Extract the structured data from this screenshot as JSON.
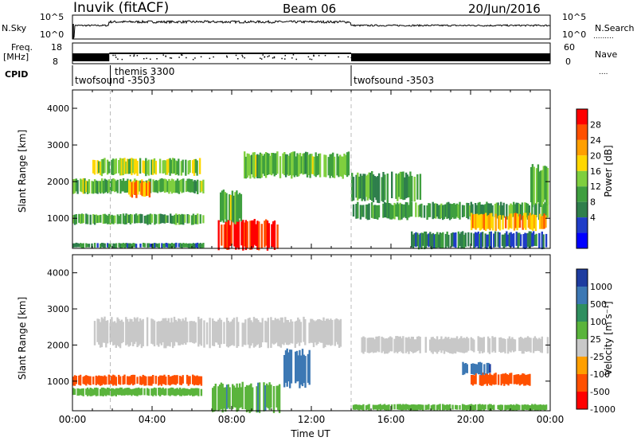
{
  "header": {
    "station": "Inuvik (fitACF)",
    "beam": "Beam 06",
    "date": "20/Jun/2016"
  },
  "summary": {
    "nsky_label": "N.Sky",
    "nsky_ticks": [
      "10^5",
      "10^0"
    ],
    "nsearch_label": "N.Search",
    "nsearch_ticks": [
      "10^5",
      "10^0"
    ],
    "freq_label_1": "Freq.",
    "freq_label_2": "[MHz]",
    "freq_ticks": [
      "18",
      "8"
    ],
    "nave_label": "Nave",
    "nave_ticks": [
      "60",
      "0"
    ],
    "cpid_label": "CPID",
    "cpid_segments": [
      {
        "name": "twofsound -3503",
        "start_h": 0.0,
        "end_h": 1.85
      },
      {
        "name": "themis 3300",
        "start_h": 1.85,
        "end_h": 1.95
      },
      {
        "name": "twofsound -3503",
        "start_h": 14.0,
        "end_h": 24.0
      }
    ]
  },
  "chart_data": [
    {
      "type": "heatmap",
      "name": "power",
      "xlabel": "",
      "ylabel": "Slant Range [km]",
      "xlim": [
        0,
        24
      ],
      "ylim": [
        180,
        4500
      ],
      "yticks": [
        1000,
        2000,
        3000,
        4000
      ],
      "colorbar": {
        "label": "Power [dB]",
        "ticks": [
          "28",
          "24",
          "20",
          "16",
          "12",
          "8",
          "4"
        ],
        "range": [
          0,
          32
        ],
        "colors": [
          "#0000ff",
          "#1f3cc8",
          "#2f7f4c",
          "#3f9f3f",
          "#7fcf3f",
          "#ffd700",
          "#ff9f00",
          "#ff5000",
          "#ff0000"
        ]
      },
      "regions": [
        {
          "t0": 0.0,
          "t1": 6.6,
          "r0": 200,
          "r1": 320,
          "value": 10
        },
        {
          "t0": 0.0,
          "t1": 6.6,
          "r0": 850,
          "r1": 1100,
          "value": 12
        },
        {
          "t0": 0.0,
          "t1": 6.6,
          "r0": 1700,
          "r1": 2050,
          "value": 14
        },
        {
          "t0": 2.8,
          "t1": 3.9,
          "r0": 1600,
          "r1": 2000,
          "value": 24
        },
        {
          "t0": 1.0,
          "t1": 6.5,
          "r0": 2200,
          "r1": 2600,
          "value": 16
        },
        {
          "t0": 7.3,
          "t1": 10.4,
          "r0": 200,
          "r1": 900,
          "value": 30
        },
        {
          "t0": 7.4,
          "t1": 8.5,
          "r0": 900,
          "r1": 1700,
          "value": 14
        },
        {
          "t0": 8.6,
          "t1": 13.9,
          "r0": 2150,
          "r1": 2750,
          "value": 14
        },
        {
          "t0": 14.0,
          "t1": 23.9,
          "r0": 1000,
          "r1": 1400,
          "value": 12
        },
        {
          "t0": 14.0,
          "t1": 17.5,
          "r0": 1500,
          "r1": 2200,
          "value": 12
        },
        {
          "t0": 20.0,
          "t1": 23.8,
          "r0": 700,
          "r1": 1100,
          "value": 22
        },
        {
          "t0": 17.0,
          "t1": 23.9,
          "r0": 200,
          "r1": 600,
          "value": 8
        },
        {
          "t0": 23.0,
          "t1": 23.9,
          "r0": 1400,
          "r1": 2400,
          "value": 14
        }
      ]
    },
    {
      "type": "heatmap",
      "name": "velocity",
      "xlabel": "Time UT",
      "ylabel": "Slant Range [km]",
      "xlim": [
        0,
        24
      ],
      "ylim": [
        180,
        4500
      ],
      "xticks": [
        "00:00",
        "04:00",
        "08:00",
        "12:00",
        "16:00",
        "20:00",
        "00:00"
      ],
      "yticks": [
        1000,
        2000,
        3000,
        4000
      ],
      "colorbar": {
        "label": "Velocity [m s⁻¹]",
        "ticks": [
          "1000",
          "500",
          "100",
          "25",
          "-25",
          "-100",
          "-500",
          "-1000"
        ],
        "colors": [
          "#1e3ca0",
          "#3c78b4",
          "#2f8f5f",
          "#5ab43c",
          "#c8c8c8",
          "#ff9f00",
          "#ff5000",
          "#ff0000"
        ]
      },
      "regions": [
        {
          "t0": 1.0,
          "t1": 13.5,
          "r0": 2000,
          "r1": 2700,
          "value": 0
        },
        {
          "t0": 14.5,
          "t1": 23.9,
          "r0": 1800,
          "r1": 2200,
          "value": 0
        },
        {
          "t0": 0.0,
          "t1": 6.5,
          "r0": 900,
          "r1": 1150,
          "value": -150
        },
        {
          "t0": 0.0,
          "t1": 6.5,
          "r0": 600,
          "r1": 800,
          "value": 60
        },
        {
          "t0": 7.0,
          "t1": 10.5,
          "r0": 200,
          "r1": 900,
          "value": 80
        },
        {
          "t0": 10.6,
          "t1": 12.0,
          "r0": 900,
          "r1": 1800,
          "value": 300
        },
        {
          "t0": 20.0,
          "t1": 23.0,
          "r0": 900,
          "r1": 1200,
          "value": -200
        },
        {
          "t0": 14.0,
          "t1": 23.9,
          "r0": 200,
          "r1": 350,
          "value": 60
        },
        {
          "t0": 19.5,
          "t1": 21.0,
          "r0": 1200,
          "r1": 1500,
          "value": 400
        }
      ]
    }
  ]
}
